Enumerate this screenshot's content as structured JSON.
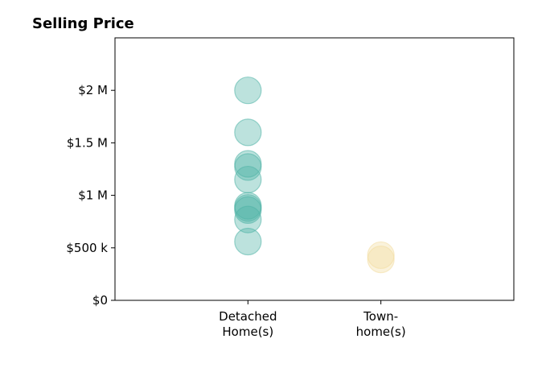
{
  "chart_data": {
    "type": "scatter",
    "title": "Selling Price",
    "xlabel": "",
    "ylabel": "",
    "categories": [
      {
        "label_lines": [
          "Detached",
          "Home(s)"
        ],
        "x": 0
      },
      {
        "label_lines": [
          "Town-",
          "home(s)"
        ],
        "x": 1
      }
    ],
    "xlim": [
      -1,
      2
    ],
    "ylim": [
      0,
      2500000
    ],
    "yticks": [
      {
        "value": 0,
        "label": "$0"
      },
      {
        "value": 500000,
        "label": "$500 k"
      },
      {
        "value": 1000000,
        "label": "$1 M"
      },
      {
        "value": 1500000,
        "label": "$1.5 M"
      },
      {
        "value": 2000000,
        "label": "$2 M"
      }
    ],
    "grid": false,
    "series": [
      {
        "category": 0,
        "color": "#4fb3a6",
        "values": [
          2000000,
          1600000,
          1300000,
          1270000,
          1150000,
          900000,
          880000,
          860000,
          770000,
          560000
        ]
      },
      {
        "category": 1,
        "color": "#f3dca0",
        "values": [
          430000,
          390000
        ]
      }
    ]
  }
}
